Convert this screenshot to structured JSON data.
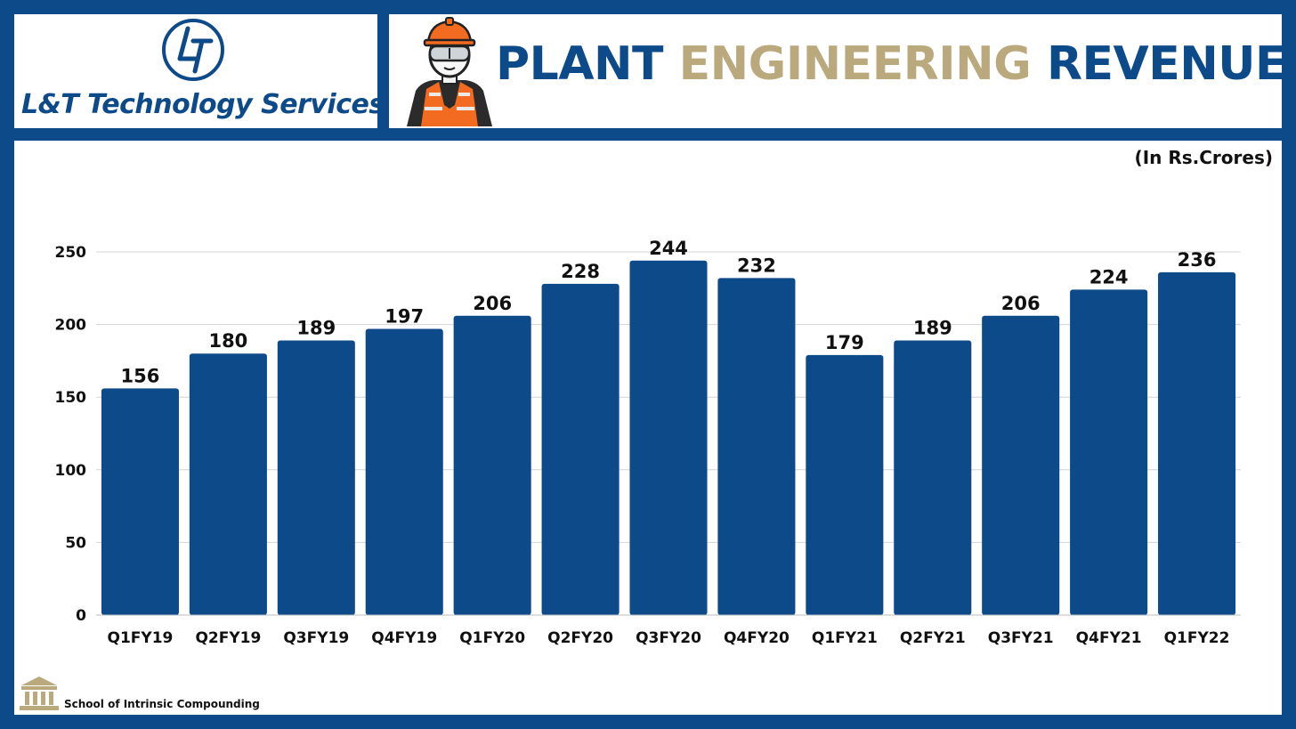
{
  "brand": {
    "name": "L&T Technology Services",
    "logo_icon": "lt-logo-icon"
  },
  "header": {
    "title_part1": "PLANT",
    "title_part2": "ENGINEERING",
    "title_part3": "REVENUE",
    "icon": "construction-worker-icon"
  },
  "colors": {
    "navy": "#0d4a8a",
    "gold": "#bba97e",
    "orange": "#f26b21"
  },
  "chart_data": {
    "type": "bar",
    "unit_note": "(In Rs.Crores)",
    "categories": [
      "Q1FY19",
      "Q2FY19",
      "Q3FY19",
      "Q4FY19",
      "Q1FY20",
      "Q2FY20",
      "Q3FY20",
      "Q4FY20",
      "Q1FY21",
      "Q2FY21",
      "Q3FY21",
      "Q4FY21",
      "Q1FY22"
    ],
    "values": [
      156,
      180,
      189,
      197,
      206,
      228,
      244,
      232,
      179,
      189,
      206,
      224,
      236
    ],
    "yticks": [
      0,
      50,
      100,
      150,
      200,
      250
    ],
    "ylim": [
      0,
      250
    ],
    "grid": true,
    "legend": false,
    "bar_color": "#0d4a8a"
  },
  "footer": {
    "text": "School of Intrinsic Compounding",
    "icon": "institution-building-icon"
  }
}
